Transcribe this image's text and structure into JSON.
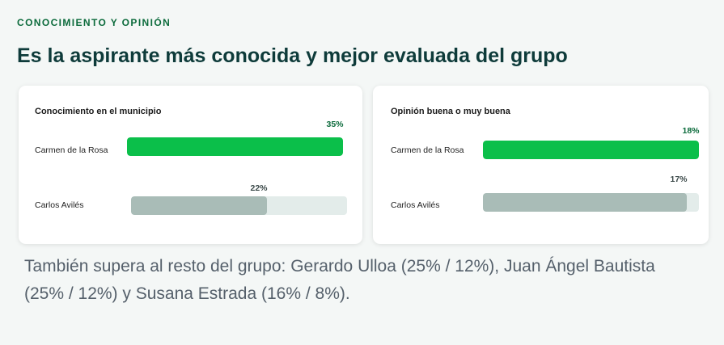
{
  "header": {
    "eyebrow": "CONOCIMIENTO Y OPINIÓN",
    "title": "Es la aspirante más conocida y mejor evaluada del grupo"
  },
  "colors": {
    "highlight": "#0bbf4a",
    "other": "#a9bcb7",
    "track": "#e3ecea",
    "highlight_label": "#0c6b3c",
    "other_label": "#3c4a4a"
  },
  "chart_data": [
    {
      "type": "bar",
      "title": "Conocimiento en el municipio",
      "categories": [
        "Carmen de la Rosa",
        "Carlos Avilés"
      ],
      "values": [
        35,
        22
      ],
      "value_labels": [
        "35%",
        "22%"
      ],
      "unit": "%",
      "orientation": "horizontal"
    },
    {
      "type": "bar",
      "title": "Opinión buena o muy buena",
      "categories": [
        "Carmen de la Rosa",
        "Carlos Avilés"
      ],
      "values": [
        18,
        17
      ],
      "value_labels": [
        "18%",
        "17%"
      ],
      "unit": "%",
      "orientation": "horizontal"
    }
  ],
  "footnote": "También supera al resto del grupo: Gerardo Ulloa (25% / 12%), Juan Ángel Bautista (25% / 12%) y Susana Estrada (16% / 8%)."
}
